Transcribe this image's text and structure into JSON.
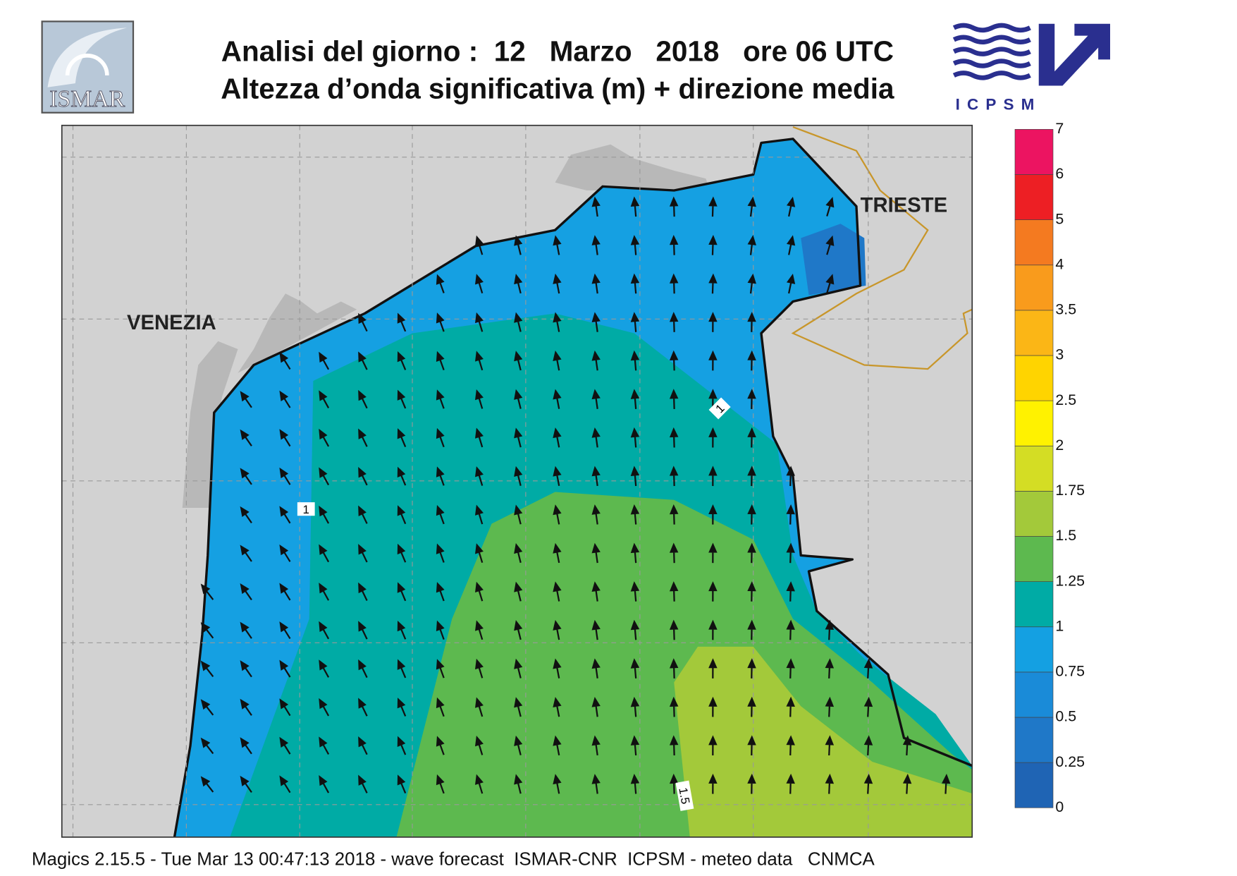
{
  "header": {
    "title": "Analisi del giorno :  12   Marzo   2018   ore 06 UTC",
    "subtitle": "Altezza d’onda significativa (m) + direzione media",
    "logo_left": "ISMAR",
    "logo_right": "ICPSM"
  },
  "map": {
    "labels": [
      "VENEZIA",
      "TRIESTE"
    ],
    "contour_labels": [
      "1",
      "1",
      "1.5"
    ]
  },
  "colorbar": {
    "ticks": [
      0,
      0.25,
      0.5,
      0.75,
      1,
      1.25,
      1.5,
      1.75,
      2,
      2.5,
      3,
      3.5,
      4,
      5,
      6,
      7
    ],
    "colors": [
      "#1f64b4",
      "#1f78c8",
      "#1a8bd8",
      "#14a0e2",
      "#00aba5",
      "#5db94f",
      "#a3c93a",
      "#d4dd24",
      "#fff200",
      "#ffd400",
      "#fbb616",
      "#f99b1c",
      "#f47a20",
      "#ed1f24",
      "#ec1461"
    ]
  },
  "footer": "Magics 2.15.5 - Tue Mar 13 00:47:13 2018 - wave forecast  ISMAR-CNR  ICPSM - meteo data   CNMCA"
}
